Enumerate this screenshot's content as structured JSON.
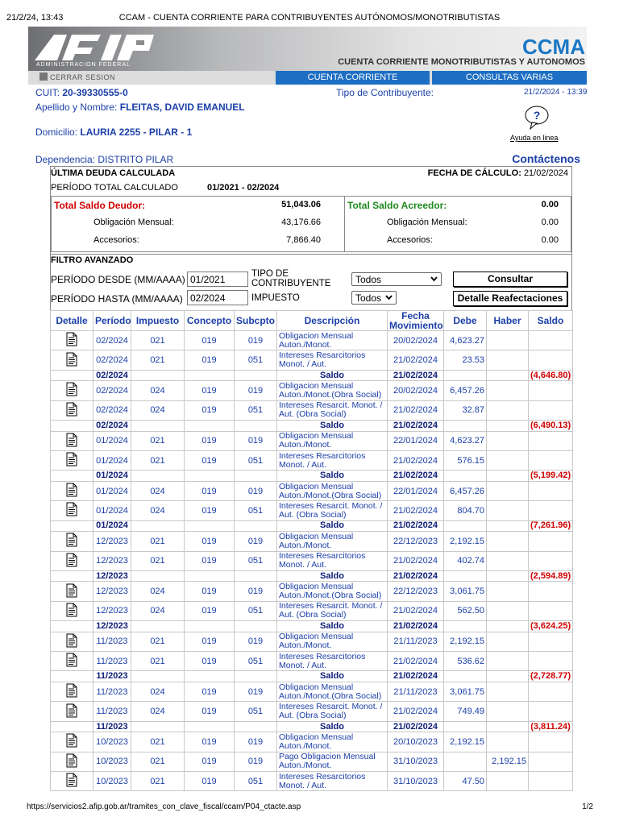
{
  "browser": {
    "timestamp": "21/2/24, 13:43",
    "title": "CCAM - CUENTA CORRIENTE PARA CONTRIBUYENTES AUTÓNOMOS/MONOTRIBUTISTAS",
    "url": "https://servicios2.afip.gob.ar/tramites_con_clave_fiscal/ccam/P04_ctacte.asp",
    "page": "1/2"
  },
  "header": {
    "logo_subtitle": "ADMINISTRACION FEDERAL",
    "app": "CCMA",
    "app_subtitle": "CUENTA CORRIENTE MONOTRIBUTISTAS Y AUTONOMOS",
    "logout": "CERRAR SESION",
    "tabs": [
      "CUENTA CORRIENTE",
      "CONSULTAS VARIAS"
    ]
  },
  "taxpayer": {
    "cuit_label": "CUIT:",
    "cuit": "20-39330555-0",
    "tipo_label": "Tipo de Contribuyente:",
    "datetime": "21/2/2024 - 13:39",
    "nombre_label": "Apellido y Nombre:",
    "nombre": "FLEITAS, DAVID EMANUEL",
    "domicilio_label": "Domicilio:",
    "domicilio": "LAURIA 2255 - PILAR - 1",
    "help": "Ayuda en linea",
    "dependencia_label": "Dependencia:",
    "dependencia": "DISTRITO PILAR",
    "contact": "Contáctenos"
  },
  "summary": {
    "title": "ÚLTIMA DEUDA CALCULADA",
    "fecha_label": "FECHA DE CÁLCULO:",
    "fecha": "21/02/2024",
    "periodo_label": "PERÍODO TOTAL CALCULADO",
    "periodo": "01/2021 - 02/2024",
    "deudor": {
      "label": "Total Saldo Deudor:",
      "total": "51,043.06",
      "obligacion_label": "Obligación Mensual:",
      "obligacion": "43,176.66",
      "accesorios_label": "Accesorios:",
      "accesorios": "7,866.40"
    },
    "acreedor": {
      "label": "Total Saldo Acreedor:",
      "total": "0.00",
      "obligacion_label": "Obligación Mensual:",
      "obligacion": "0.00",
      "accesorios_label": "Accesorios:",
      "accesorios": "0.00"
    }
  },
  "filter": {
    "title": "FILTRO AVANZADO",
    "desde_label": "PERÍODO DESDE (MM/AAAA)",
    "desde": "01/2021",
    "hasta_label": "PERÍODO HASTA (MM/AAAA)",
    "hasta": "02/2024",
    "tipo_label": "TIPO DE CONTRIBUYENTE",
    "tipo": "Todos",
    "impuesto_label": "IMPUESTO",
    "impuesto": "Todos",
    "buttons": [
      "Consultar",
      "Detalle Reafectaciones"
    ]
  },
  "table": {
    "columns": [
      "Detalle",
      "Período",
      "Impuesto",
      "Concepto",
      "Subcpto",
      "Descripción",
      "Fecha Movimiento",
      "Debe",
      "Haber",
      "Saldo"
    ],
    "rows": [
      [
        "02/2024",
        "021",
        "019",
        "019",
        "Obligacion Mensual Auton./Monot.",
        "20/02/2024",
        "4,623.27",
        null,
        null
      ],
      [
        "02/2024",
        "021",
        "019",
        "051",
        "Intereses Resarcitorios Monot. / Aut.",
        "21/02/2024",
        "23.53",
        null,
        null
      ],
      [
        "02/2024",
        null,
        null,
        null,
        "Saldo",
        "21/02/2024",
        null,
        null,
        "(4,646.80)"
      ],
      [
        "02/2024",
        "024",
        "019",
        "019",
        "Obligacion Mensual Auton./Monot.(Obra Social)",
        "20/02/2024",
        "6,457.26",
        null,
        null
      ],
      [
        "02/2024",
        "024",
        "019",
        "051",
        "Intereses Resarcit. Monot. / Aut. (Obra Social)",
        "21/02/2024",
        "32.87",
        null,
        null
      ],
      [
        "02/2024",
        null,
        null,
        null,
        "Saldo",
        "21/02/2024",
        null,
        null,
        "(6,490.13)"
      ],
      [
        "01/2024",
        "021",
        "019",
        "019",
        "Obligacion Mensual Auton./Monot.",
        "22/01/2024",
        "4,623.27",
        null,
        null
      ],
      [
        "01/2024",
        "021",
        "019",
        "051",
        "Intereses Resarcitorios Monot. / Aut.",
        "21/02/2024",
        "576.15",
        null,
        null
      ],
      [
        "01/2024",
        null,
        null,
        null,
        "Saldo",
        "21/02/2024",
        null,
        null,
        "(5,199.42)"
      ],
      [
        "01/2024",
        "024",
        "019",
        "019",
        "Obligacion Mensual Auton./Monot.(Obra Social)",
        "22/01/2024",
        "6,457.26",
        null,
        null
      ],
      [
        "01/2024",
        "024",
        "019",
        "051",
        "Intereses Resarcit. Monot. / Aut. (Obra Social)",
        "21/02/2024",
        "804.70",
        null,
        null
      ],
      [
        "01/2024",
        null,
        null,
        null,
        "Saldo",
        "21/02/2024",
        null,
        null,
        "(7,261.96)"
      ],
      [
        "12/2023",
        "021",
        "019",
        "019",
        "Obligacion Mensual Auton./Monot.",
        "22/12/2023",
        "2,192.15",
        null,
        null
      ],
      [
        "12/2023",
        "021",
        "019",
        "051",
        "Intereses Resarcitorios Monot. / Aut.",
        "21/02/2024",
        "402.74",
        null,
        null
      ],
      [
        "12/2023",
        null,
        null,
        null,
        "Saldo",
        "21/02/2024",
        null,
        null,
        "(2,594.89)"
      ],
      [
        "12/2023",
        "024",
        "019",
        "019",
        "Obligacion Mensual Auton./Monot.(Obra Social)",
        "22/12/2023",
        "3,061.75",
        null,
        null
      ],
      [
        "12/2023",
        "024",
        "019",
        "051",
        "Intereses Resarcit. Monot. / Aut. (Obra Social)",
        "21/02/2024",
        "562.50",
        null,
        null
      ],
      [
        "12/2023",
        null,
        null,
        null,
        "Saldo",
        "21/02/2024",
        null,
        null,
        "(3,624.25)"
      ],
      [
        "11/2023",
        "021",
        "019",
        "019",
        "Obligacion Mensual Auton./Monot.",
        "21/11/2023",
        "2,192.15",
        null,
        null
      ],
      [
        "11/2023",
        "021",
        "019",
        "051",
        "Intereses Resarcitorios Monot. / Aut.",
        "21/02/2024",
        "536.62",
        null,
        null
      ],
      [
        "11/2023",
        null,
        null,
        null,
        "Saldo",
        "21/02/2024",
        null,
        null,
        "(2,728.77)"
      ],
      [
        "11/2023",
        "024",
        "019",
        "019",
        "Obligacion Mensual Auton./Monot.(Obra Social)",
        "21/11/2023",
        "3,061.75",
        null,
        null
      ],
      [
        "11/2023",
        "024",
        "019",
        "051",
        "Intereses Resarcit. Monot. / Aut. (Obra Social)",
        "21/02/2024",
        "749.49",
        null,
        null
      ],
      [
        "11/2023",
        null,
        null,
        null,
        "Saldo",
        "21/02/2024",
        null,
        null,
        "(3,811.24)"
      ],
      [
        "10/2023",
        "021",
        "019",
        "019",
        "Obligacion Mensual Auton./Monot.",
        "20/10/2023",
        "2,192.15",
        null,
        null
      ],
      [
        "10/2023",
        "021",
        "019",
        "019",
        "Pago Obligacion Mensual Auton./Monot.",
        "31/10/2023",
        null,
        "2,192.15",
        null
      ],
      [
        "10/2023",
        "021",
        "019",
        "051",
        "Intereses Resarcitorios Monot. / Aut.",
        "31/10/2023",
        "47.50",
        null,
        null
      ]
    ]
  }
}
